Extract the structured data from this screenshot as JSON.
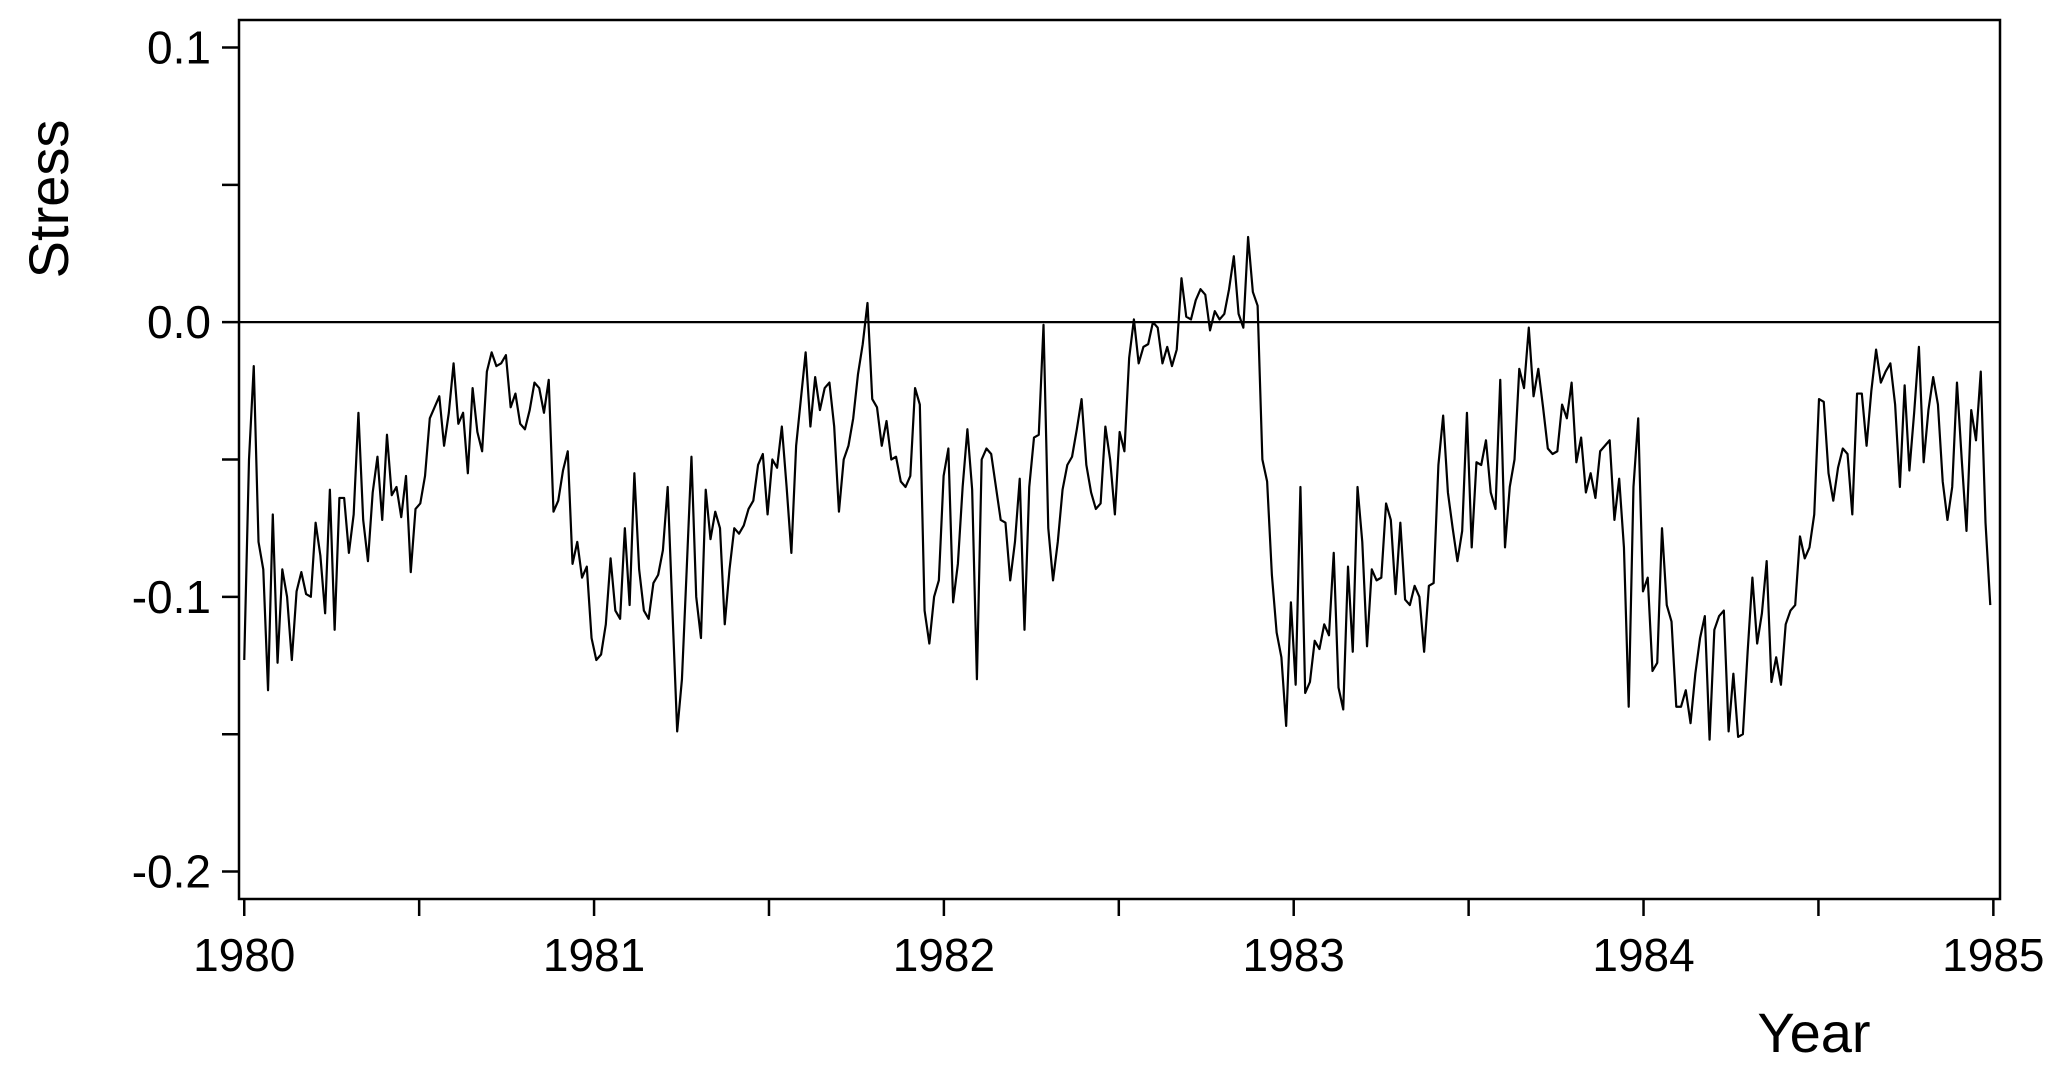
{
  "chart_data": {
    "type": "line",
    "color": "#000000",
    "xlabel": "Year",
    "ylabel": "Stress",
    "xlim": [
      1979.985,
      1985.019
    ],
    "ylim": [
      -0.21,
      0.11
    ],
    "xticks": [
      1980,
      1981,
      1982,
      1983,
      1984,
      1985
    ],
    "xminor": [
      1980.5,
      1981.5,
      1982.5,
      1983.5,
      1984.5
    ],
    "yticks": [
      0.1,
      {
        "value": 0,
        "label": "0.0"
      },
      -0.1,
      -0.2
    ],
    "yminor": [
      0.05,
      -0.05,
      -0.15
    ],
    "hline": 0,
    "x": [
      1980,
      1980.0136,
      1980.0272,
      1980.0408,
      1980.0544,
      1980.068,
      1980.0816,
      1980.0952,
      1980.1088,
      1980.1224,
      1980.136,
      1980.1496,
      1980.1632,
      1980.1768,
      1980.1904,
      1980.204,
      1980.2176,
      1980.2312,
      1980.2448,
      1980.2584,
      1980.272,
      1980.2856,
      1980.2992,
      1980.3128,
      1980.3264,
      1980.34,
      1980.3536,
      1980.3672,
      1980.3808,
      1980.3944,
      1980.408,
      1980.4216,
      1980.4352,
      1980.4488,
      1980.4624,
      1980.476,
      1980.4896,
      1980.5032,
      1980.5168,
      1980.5304,
      1980.544,
      1980.5576,
      1980.5712,
      1980.5848,
      1980.5984,
      1980.612,
      1980.6256,
      1980.6392,
      1980.6528,
      1980.6664,
      1980.68,
      1980.6936,
      1980.7072,
      1980.7208,
      1980.7344,
      1980.748,
      1980.7616,
      1980.7752,
      1980.7888,
      1980.8024,
      1980.816,
      1980.8296,
      1980.8432,
      1980.8568,
      1980.8704,
      1980.884,
      1980.8976,
      1980.9112,
      1980.9248,
      1980.9384,
      1980.952,
      1980.9656,
      1980.9792,
      1980.9928,
      1981.0064,
      1981.02,
      1981.0336,
      1981.0472,
      1981.0608,
      1981.0744,
      1981.088,
      1981.1016,
      1981.1152,
      1981.1288,
      1981.1424,
      1981.156,
      1981.1696,
      1981.1832,
      1981.1968,
      1981.2104,
      1981.224,
      1981.2376,
      1981.2512,
      1981.2648,
      1981.2784,
      1981.292,
      1981.3056,
      1981.3192,
      1981.3328,
      1981.3464,
      1981.36,
      1981.3736,
      1981.3872,
      1981.4008,
      1981.4144,
      1981.428,
      1981.4416,
      1981.4552,
      1981.4688,
      1981.4824,
      1981.496,
      1981.5096,
      1981.5232,
      1981.5368,
      1981.5504,
      1981.564,
      1981.5776,
      1981.5912,
      1981.6048,
      1981.6184,
      1981.632,
      1981.6456,
      1981.6592,
      1981.6728,
      1981.6864,
      1981.7,
      1981.7136,
      1981.7272,
      1981.7408,
      1981.7544,
      1981.768,
      1981.7816,
      1981.7952,
      1981.8088,
      1981.8224,
      1981.836,
      1981.8496,
      1981.8632,
      1981.8768,
      1981.8904,
      1981.904,
      1981.9176,
      1981.9312,
      1981.9448,
      1981.9584,
      1981.972,
      1981.9856,
      1981.9992,
      1982.0128,
      1982.0264,
      1982.04,
      1982.0536,
      1982.0672,
      1982.0808,
      1982.0944,
      1982.108,
      1982.1216,
      1982.1352,
      1982.1488,
      1982.1624,
      1982.176,
      1982.1896,
      1982.2032,
      1982.2168,
      1982.2304,
      1982.244,
      1982.2576,
      1982.2712,
      1982.2848,
      1982.2984,
      1982.312,
      1982.3256,
      1982.3392,
      1982.3528,
      1982.3664,
      1982.38,
      1982.3936,
      1982.4072,
      1982.4208,
      1982.4344,
      1982.448,
      1982.4616,
      1982.4752,
      1982.4888,
      1982.5024,
      1982.516,
      1982.5296,
      1982.5432,
      1982.5568,
      1982.5704,
      1982.584,
      1982.5976,
      1982.6112,
      1982.6248,
      1982.6384,
      1982.652,
      1982.6656,
      1982.6792,
      1982.6928,
      1982.7064,
      1982.72,
      1982.7336,
      1982.7472,
      1982.7608,
      1982.7744,
      1982.788,
      1982.8016,
      1982.8152,
      1982.8288,
      1982.8424,
      1982.856,
      1982.8696,
      1982.8832,
      1982.8968,
      1982.9104,
      1982.924,
      1982.9376,
      1982.9512,
      1982.9648,
      1982.9784,
      1982.992,
      1983.0056,
      1983.0192,
      1983.0328,
      1983.0464,
      1983.06,
      1983.0736,
      1983.0872,
      1983.1008,
      1983.1144,
      1983.128,
      1983.1416,
      1983.1552,
      1983.1688,
      1983.1824,
      1983.196,
      1983.2096,
      1983.2232,
      1983.2368,
      1983.2504,
      1983.264,
      1983.2776,
      1983.2912,
      1983.3048,
      1983.3184,
      1983.332,
      1983.3456,
      1983.3592,
      1983.3728,
      1983.3864,
      1983.4,
      1983.4136,
      1983.4272,
      1983.4408,
      1983.4544,
      1983.468,
      1983.4816,
      1983.4952,
      1983.5088,
      1983.5224,
      1983.536,
      1983.5496,
      1983.5632,
      1983.5768,
      1983.5904,
      1983.604,
      1983.6176,
      1983.6312,
      1983.6448,
      1983.6584,
      1983.672,
      1983.6856,
      1983.6992,
      1983.7128,
      1983.7264,
      1983.74,
      1983.7536,
      1983.7672,
      1983.7808,
      1983.7944,
      1983.808,
      1983.8216,
      1983.8352,
      1983.8488,
      1983.8624,
      1983.876,
      1983.8896,
      1983.9032,
      1983.9168,
      1983.9304,
      1983.944,
      1983.9576,
      1983.9712,
      1983.9848,
      1983.9984,
      1984.012,
      1984.0256,
      1984.0392,
      1984.0528,
      1984.0664,
      1984.08,
      1984.0936,
      1984.1072,
      1984.1208,
      1984.1344,
      1984.148,
      1984.1616,
      1984.1752,
      1984.1888,
      1984.2024,
      1984.216,
      1984.2296,
      1984.2432,
      1984.2568,
      1984.2704,
      1984.284,
      1984.2976,
      1984.3112,
      1984.3248,
      1984.3384,
      1984.352,
      1984.3656,
      1984.3792,
      1984.3928,
      1984.4064,
      1984.42,
      1984.4336,
      1984.4472,
      1984.4608,
      1984.4744,
      1984.488,
      1984.5016,
      1984.5152,
      1984.5288,
      1984.5424,
      1984.556,
      1984.5696,
      1984.5832,
      1984.5968,
      1984.6104,
      1984.624,
      1984.6376,
      1984.6512,
      1984.6648,
      1984.6784,
      1984.692,
      1984.7056,
      1984.7192,
      1984.7328,
      1984.7464,
      1984.76,
      1984.7736,
      1984.7872,
      1984.8008,
      1984.8144,
      1984.828,
      1984.8416,
      1984.8552,
      1984.8688,
      1984.8824,
      1984.896,
      1984.9096,
      1984.9232,
      1984.9368,
      1984.9504,
      1984.964,
      1984.9776,
      1984.9912
    ],
    "values": [
      -0.123,
      -0.05,
      -0.016,
      -0.08,
      -0.09,
      -0.134,
      -0.07,
      -0.124,
      -0.09,
      -0.1,
      -0.123,
      -0.098,
      -0.091,
      -0.099,
      -0.1,
      -0.073,
      -0.085,
      -0.106,
      -0.061,
      -0.112,
      -0.064,
      -0.064,
      -0.084,
      -0.07,
      -0.033,
      -0.072,
      -0.087,
      -0.062,
      -0.049,
      -0.072,
      -0.041,
      -0.063,
      -0.06,
      -0.071,
      -0.056,
      -0.091,
      -0.068,
      -0.066,
      -0.056,
      -0.035,
      -0.031,
      -0.027,
      -0.045,
      -0.033,
      -0.015,
      -0.037,
      -0.033,
      -0.055,
      -0.024,
      -0.04,
      -0.047,
      -0.018,
      -0.011,
      -0.016,
      -0.015,
      -0.012,
      -0.031,
      -0.026,
      -0.037,
      -0.039,
      -0.032,
      -0.022,
      -0.024,
      -0.033,
      -0.021,
      -0.069,
      -0.065,
      -0.054,
      -0.047,
      -0.088,
      -0.08,
      -0.093,
      -0.089,
      -0.115,
      -0.123,
      -0.121,
      -0.11,
      -0.086,
      -0.105,
      -0.108,
      -0.075,
      -0.103,
      -0.055,
      -0.09,
      -0.105,
      -0.108,
      -0.095,
      -0.092,
      -0.083,
      -0.06,
      -0.105,
      -0.149,
      -0.13,
      -0.09,
      -0.049,
      -0.1,
      -0.115,
      -0.061,
      -0.079,
      -0.069,
      -0.075,
      -0.11,
      -0.09,
      -0.075,
      -0.077,
      -0.074,
      -0.068,
      -0.065,
      -0.052,
      -0.048,
      -0.07,
      -0.05,
      -0.053,
      -0.038,
      -0.06,
      -0.084,
      -0.045,
      -0.028,
      -0.011,
      -0.038,
      -0.02,
      -0.032,
      -0.024,
      -0.022,
      -0.038,
      -0.069,
      -0.05,
      -0.045,
      -0.035,
      -0.019,
      -0.008,
      0.007,
      -0.028,
      -0.031,
      -0.045,
      -0.036,
      -0.05,
      -0.049,
      -0.058,
      -0.06,
      -0.056,
      -0.024,
      -0.03,
      -0.105,
      -0.117,
      -0.1,
      -0.094,
      -0.056,
      -0.046,
      -0.102,
      -0.088,
      -0.06,
      -0.039,
      -0.061,
      -0.13,
      -0.05,
      -0.046,
      -0.048,
      -0.06,
      -0.072,
      -0.073,
      -0.094,
      -0.08,
      -0.057,
      -0.112,
      -0.06,
      -0.042,
      -0.041,
      -0.001,
      -0.075,
      -0.094,
      -0.08,
      -0.061,
      -0.052,
      -0.049,
      -0.039,
      -0.028,
      -0.052,
      -0.062,
      -0.068,
      -0.066,
      -0.038,
      -0.05,
      -0.07,
      -0.04,
      -0.047,
      -0.013,
      0.001,
      -0.015,
      -0.009,
      -0.008,
      0,
      -0.002,
      -0.015,
      -0.009,
      -0.016,
      -0.01,
      0.016,
      0.002,
      0.001,
      0.008,
      0.012,
      0.01,
      -0.003,
      0.004,
      0.001,
      0.003,
      0.012,
      0.024,
      0.003,
      -0.002,
      0.031,
      0.011,
      0.006,
      -0.05,
      -0.058,
      -0.092,
      -0.113,
      -0.122,
      -0.147,
      -0.102,
      -0.132,
      -0.06,
      -0.135,
      -0.131,
      -0.116,
      -0.119,
      -0.11,
      -0.114,
      -0.084,
      -0.133,
      -0.141,
      -0.089,
      -0.12,
      -0.06,
      -0.08,
      -0.118,
      -0.09,
      -0.094,
      -0.093,
      -0.066,
      -0.072,
      -0.099,
      -0.073,
      -0.101,
      -0.103,
      -0.096,
      -0.1,
      -0.12,
      -0.096,
      -0.095,
      -0.052,
      -0.034,
      -0.062,
      -0.075,
      -0.087,
      -0.076,
      -0.033,
      -0.082,
      -0.051,
      -0.052,
      -0.043,
      -0.062,
      -0.068,
      -0.021,
      -0.082,
      -0.06,
      -0.05,
      -0.017,
      -0.024,
      -0.002,
      -0.027,
      -0.017,
      -0.031,
      -0.046,
      -0.048,
      -0.047,
      -0.03,
      -0.035,
      -0.022,
      -0.051,
      -0.042,
      -0.062,
      -0.055,
      -0.064,
      -0.047,
      -0.045,
      -0.043,
      -0.072,
      -0.057,
      -0.082,
      -0.14,
      -0.06,
      -0.035,
      -0.098,
      -0.093,
      -0.127,
      -0.124,
      -0.075,
      -0.103,
      -0.109,
      -0.14,
      -0.14,
      -0.134,
      -0.146,
      -0.128,
      -0.115,
      -0.107,
      -0.152,
      -0.112,
      -0.107,
      -0.105,
      -0.149,
      -0.128,
      -0.151,
      -0.15,
      -0.12,
      -0.093,
      -0.117,
      -0.106,
      -0.087,
      -0.131,
      -0.122,
      -0.132,
      -0.11,
      -0.105,
      -0.103,
      -0.078,
      -0.086,
      -0.082,
      -0.07,
      -0.028,
      -0.029,
      -0.055,
      -0.065,
      -0.053,
      -0.046,
      -0.048,
      -0.07,
      -0.026,
      -0.026,
      -0.045,
      -0.025,
      -0.01,
      -0.022,
      -0.018,
      -0.015,
      -0.03,
      -0.06,
      -0.023,
      -0.054,
      -0.033,
      -0.009,
      -0.051,
      -0.032,
      -0.02,
      -0.03,
      -0.058,
      -0.072,
      -0.06,
      -0.022,
      -0.05,
      -0.076,
      -0.032,
      -0.043,
      -0.018,
      -0.073,
      -0.103
    ]
  }
}
